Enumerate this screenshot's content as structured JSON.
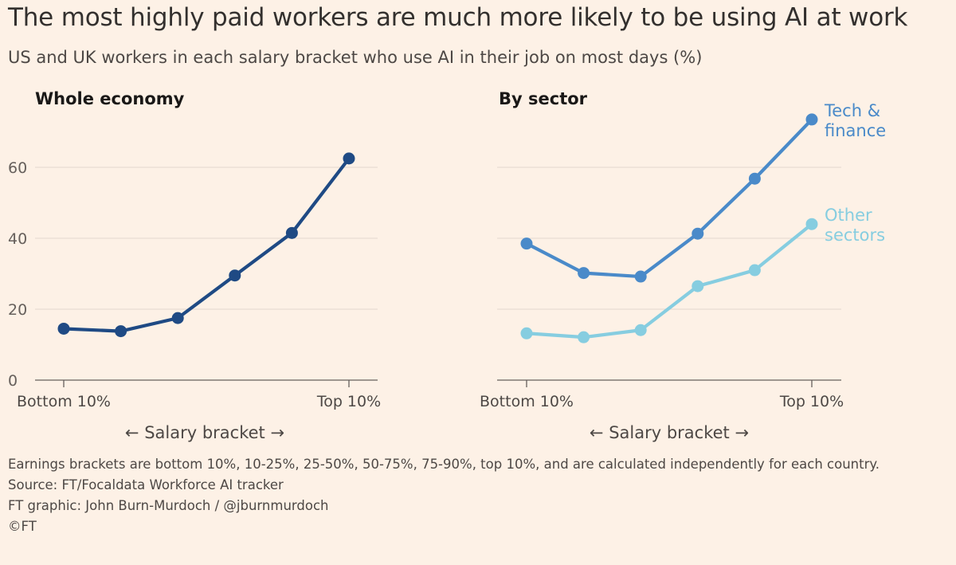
{
  "title": "The most highly paid workers are much more likely to be using AI at work",
  "subtitle": "US and UK workers in each salary bracket who use AI in their job on most days (%)",
  "notes": {
    "earnings": "Earnings brackets are bottom 10%, 10-25%, 25-50%, 50-75%, 75-90%, top 10%, and are calculated independently for each country.",
    "source": "Source: FT/Focaldata Workforce AI tracker",
    "credit": "FT graphic: John Burn-Murdoch / @jburnmurdoch",
    "copyright": "©FT"
  },
  "chart_data": [
    {
      "type": "line",
      "panel": "whole-economy",
      "title": "Whole economy",
      "xlabel": "← Salary bracket →",
      "x_tick_labels": [
        "Bottom 10%",
        "Top 10%"
      ],
      "categories": [
        "Bottom 10%",
        "10-25%",
        "25-50%",
        "50-75%",
        "75-90%",
        "Top 10%"
      ],
      "y_ticks": [
        0,
        20,
        40,
        60
      ],
      "ylim": [
        0,
        65
      ],
      "grid": true,
      "series": [
        {
          "name": "",
          "color": "#1f4a84",
          "values": [
            14.5,
            13.8,
            17.5,
            29.5,
            41.5,
            62.5
          ]
        }
      ]
    },
    {
      "type": "line",
      "panel": "by-sector",
      "title": "By sector",
      "xlabel": "← Salary bracket →",
      "x_tick_labels": [
        "Bottom 10%",
        "Top 10%"
      ],
      "categories": [
        "Bottom 10%",
        "10-25%",
        "25-50%",
        "50-75%",
        "75-90%",
        "Top 10%"
      ],
      "y_ticks": [
        0,
        20,
        40,
        60
      ],
      "ylim": [
        0,
        75
      ],
      "grid": true,
      "series": [
        {
          "name": "Tech & finance",
          "name_lines": [
            "Tech &",
            "finance"
          ],
          "color": "#4a8ac9",
          "values": [
            38.5,
            30.2,
            29.2,
            41.3,
            56.8,
            73.5
          ]
        },
        {
          "name": "Other sectors",
          "name_lines": [
            "Other",
            "sectors"
          ],
          "color": "#86cde0",
          "values": [
            13.2,
            12.1,
            14.1,
            26.5,
            31.0,
            44.0
          ]
        }
      ]
    }
  ]
}
